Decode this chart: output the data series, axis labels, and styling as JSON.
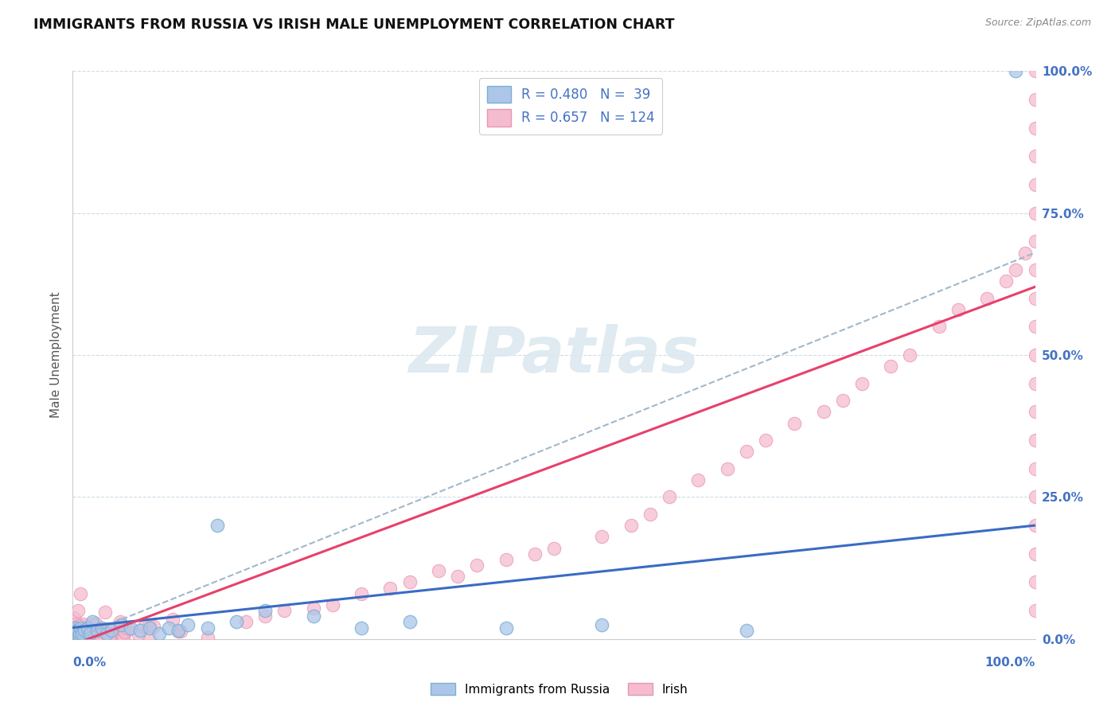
{
  "title": "IMMIGRANTS FROM RUSSIA VS IRISH MALE UNEMPLOYMENT CORRELATION CHART",
  "source": "Source: ZipAtlas.com",
  "ylabel": "Male Unemployment",
  "series1_fill": "#adc6e8",
  "series1_edge": "#7aafd4",
  "series2_fill": "#f5bcd0",
  "series2_edge": "#e896b4",
  "trendline1_color": "#3a6bc4",
  "trendline2_color": "#e8406a",
  "trendline_dashed_color": "#a0b8cc",
  "background_color": "#ffffff",
  "grid_color": "#ccdde8",
  "right_axis_color": "#4472C4",
  "title_color": "#111111",
  "source_color": "#888888",
  "watermark_color": "#dce8f0",
  "legend_label_color": "#4472C4",
  "ylabel_color": "#555555"
}
